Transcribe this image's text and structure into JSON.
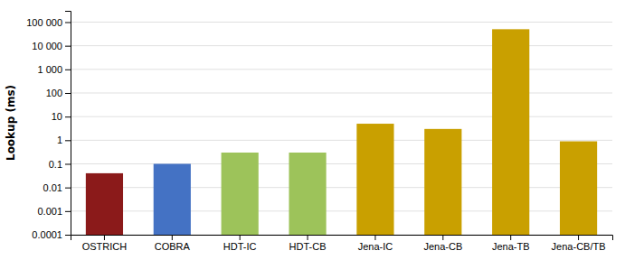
{
  "chart_data": {
    "type": "bar",
    "categories": [
      "OSTRICH",
      "COBRA",
      "HDT-IC",
      "HDT-CB",
      "Jena-IC",
      "Jena-CB",
      "Jena-TB",
      "Jena-CB/TB"
    ],
    "values": [
      0.04,
      0.1,
      0.3,
      0.3,
      5.0,
      3.0,
      50000,
      0.9
    ],
    "colors": [
      "#8B1A1A",
      "#4472C4",
      "#9DC35A",
      "#9DC35A",
      "#C9A000",
      "#C9A000",
      "#C9A000",
      "#C9A000"
    ],
    "ylabel": "Lookup (ms)",
    "log": "y",
    "ylim": [
      0.0001,
      300000
    ],
    "yticks": [
      0.0001,
      0.001,
      0.01,
      0.1,
      1,
      10,
      100,
      {
        "value": 1000,
        "label": "1 000"
      },
      {
        "value": 10000,
        "label": "10 000"
      },
      {
        "value": 100000,
        "label": "100 000"
      }
    ],
    "grid": true
  }
}
